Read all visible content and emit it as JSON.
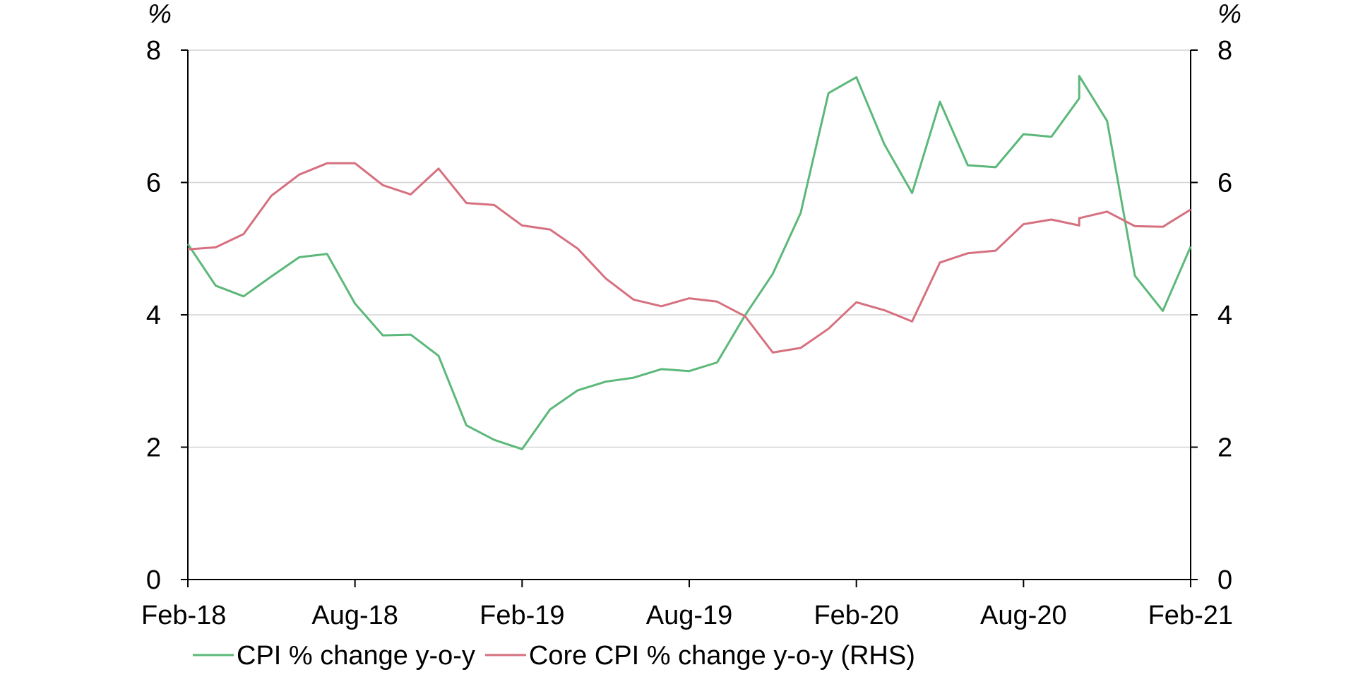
{
  "chart_data": {
    "type": "line",
    "title": "",
    "xlabel": "",
    "ylabel_left": "%",
    "ylabel_right": "%",
    "ylim_left": [
      0,
      8
    ],
    "ylim_right": [
      0,
      8
    ],
    "yticks_left": [
      "0",
      "2",
      "4",
      "6",
      "8"
    ],
    "yticks_right": [
      "0",
      "2",
      "4",
      "6",
      "8"
    ],
    "ytick_values": [
      0,
      2,
      4,
      6,
      8
    ],
    "x_ticks": [
      {
        "label": "Feb-18",
        "month": "2018-02"
      },
      {
        "label": "Aug-18",
        "month": "2018-08"
      },
      {
        "label": "Feb-19",
        "month": "2019-02"
      },
      {
        "label": "Aug-19",
        "month": "2019-08"
      },
      {
        "label": "Feb-20",
        "month": "2020-02"
      },
      {
        "label": "Aug-20",
        "month": "2020-08"
      },
      {
        "label": "Feb-21",
        "month": "2021-02"
      }
    ],
    "x_range": [
      "2018-02",
      "2021-02"
    ],
    "grid": "horizontal",
    "legend_position": "bottom",
    "series": [
      {
        "name": "CPI % change y-o-y",
        "axis": "left",
        "color": "#5cb87a",
        "points": [
          [
            "2018-02",
            5.07
          ],
          [
            "2018-03",
            4.44
          ],
          [
            "2018-04",
            4.28
          ],
          [
            "2018-05",
            4.58
          ],
          [
            "2018-06",
            4.87
          ],
          [
            "2018-07",
            4.92
          ],
          [
            "2018-08",
            4.17
          ],
          [
            "2018-09",
            3.69
          ],
          [
            "2018-10",
            3.7
          ],
          [
            "2018-11",
            3.38
          ],
          [
            "2018-12",
            2.33
          ],
          [
            "2019-01",
            2.11
          ],
          [
            "2019-02",
            1.97
          ],
          [
            "2019-03",
            2.57
          ],
          [
            "2019-04",
            2.86
          ],
          [
            "2019-05",
            2.99
          ],
          [
            "2019-06",
            3.05
          ],
          [
            "2019-07",
            3.18
          ],
          [
            "2019-08",
            3.15
          ],
          [
            "2019-09",
            3.28
          ],
          [
            "2019-10",
            3.99
          ],
          [
            "2019-11",
            4.62
          ],
          [
            "2019-12",
            5.54
          ],
          [
            "2020-01",
            7.35
          ],
          [
            "2020-02",
            7.59
          ],
          [
            "2020-03",
            6.58
          ],
          [
            "2020-04",
            5.84
          ],
          [
            "2020-05",
            7.22
          ],
          [
            "2020-06",
            6.26
          ],
          [
            "2020-07",
            6.23
          ],
          [
            "2020-08",
            6.73
          ],
          [
            "2020-09",
            6.69
          ],
          [
            "2020-10",
            7.27
          ],
          [
            "2020-10",
            7.61
          ],
          [
            "2020-11",
            6.93
          ],
          [
            "2020-12",
            4.59
          ],
          [
            "2021-01",
            4.06
          ],
          [
            "2021-02",
            5.03
          ]
        ]
      },
      {
        "name": "Core CPI % change y-o-y (RHS)",
        "axis": "right",
        "color": "#d6707f",
        "points": [
          [
            "2018-02",
            4.99
          ],
          [
            "2018-03",
            5.02
          ],
          [
            "2018-04",
            5.22
          ],
          [
            "2018-05",
            5.8
          ],
          [
            "2018-06",
            6.12
          ],
          [
            "2018-07",
            6.29
          ],
          [
            "2018-08",
            6.29
          ],
          [
            "2018-09",
            5.96
          ],
          [
            "2018-10",
            5.82
          ],
          [
            "2018-11",
            6.21
          ],
          [
            "2018-12",
            5.69
          ],
          [
            "2019-01",
            5.66
          ],
          [
            "2019-02",
            5.35
          ],
          [
            "2019-03",
            5.29
          ],
          [
            "2019-04",
            5.0
          ],
          [
            "2019-05",
            4.55
          ],
          [
            "2019-06",
            4.23
          ],
          [
            "2019-07",
            4.13
          ],
          [
            "2019-08",
            4.25
          ],
          [
            "2019-09",
            4.2
          ],
          [
            "2019-10",
            3.98
          ],
          [
            "2019-11",
            3.43
          ],
          [
            "2019-12",
            3.5
          ],
          [
            "2020-01",
            3.79
          ],
          [
            "2020-02",
            4.19
          ],
          [
            "2020-03",
            4.07
          ],
          [
            "2020-04",
            3.9
          ],
          [
            "2020-05",
            4.79
          ],
          [
            "2020-06",
            4.93
          ],
          [
            "2020-07",
            4.97
          ],
          [
            "2020-08",
            5.37
          ],
          [
            "2020-09",
            5.44
          ],
          [
            "2020-10",
            5.35
          ],
          [
            "2020-10",
            5.46
          ],
          [
            "2020-11",
            5.56
          ],
          [
            "2020-12",
            5.34
          ],
          [
            "2021-01",
            5.33
          ],
          [
            "2021-02",
            5.59
          ]
        ]
      }
    ]
  }
}
